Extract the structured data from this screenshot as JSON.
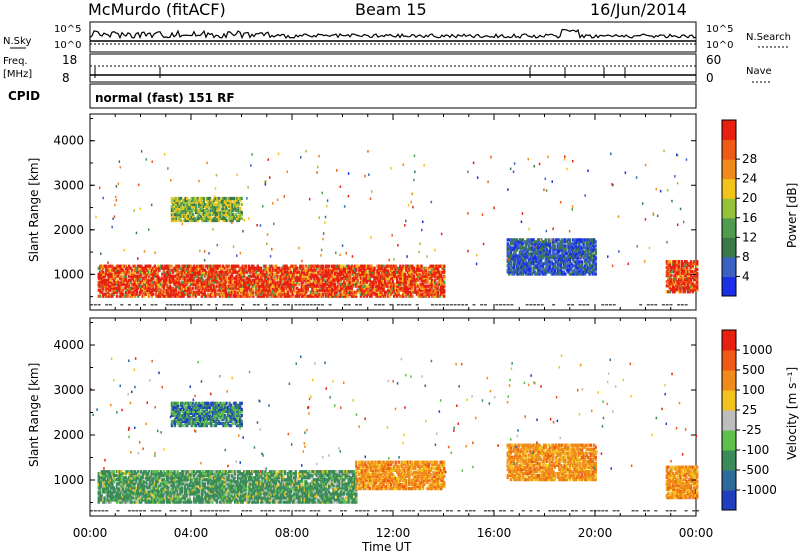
{
  "header": {
    "site": "McMurdo (fitACF)",
    "beam": "Beam 15",
    "date": "16/Jun/2014"
  },
  "top_panels": {
    "nsky_label": "N.Sky",
    "nsky_ticks": [
      "10^5",
      "10^0"
    ],
    "nsearch_label": "N.Search",
    "nsearch_ticks": [
      "10^5",
      "10^0"
    ],
    "freq_label": "Freq.",
    "freq_unit": "[MHz]",
    "freq_ticks": [
      "18",
      "8"
    ],
    "nave_label": "Nave",
    "nave_ticks": [
      "60",
      "0"
    ],
    "cpid_label": "CPID",
    "cpid_value": "normal (fast) 151 RF"
  },
  "chart_data": [
    {
      "type": "heatmap",
      "name": "power",
      "ylabel": "Slant Range [km]",
      "y_ticks": [
        1000,
        2000,
        3000,
        4000
      ],
      "ylim": [
        200,
        4600
      ],
      "x_ticks": [
        "00:00",
        "04:00",
        "08:00",
        "12:00",
        "16:00",
        "20:00",
        "00:00"
      ],
      "xlim_hours": [
        0,
        24
      ],
      "colorbar": {
        "label": "Power [dB]",
        "ticks": [
          "4",
          "8",
          "12",
          "16",
          "20",
          "24",
          "28"
        ],
        "colors": [
          "#1a2fe6",
          "#3b62c2",
          "#3a7a4a",
          "#4f9b50",
          "#96c23a",
          "#f2c31a",
          "#f08a1a",
          "#ef5a16",
          "#e82010"
        ]
      },
      "regions": [
        {
          "t0": 0.3,
          "t1": 14.0,
          "r0": 500,
          "r1": 1200,
          "level": "high"
        },
        {
          "t0": 3.2,
          "t1": 6.0,
          "r0": 2200,
          "r1": 2700,
          "level": "mid"
        },
        {
          "t0": 16.5,
          "t1": 20.0,
          "r0": 1000,
          "r1": 1800,
          "level": "low"
        },
        {
          "t0": 22.8,
          "t1": 24.0,
          "r0": 600,
          "r1": 1300,
          "level": "high"
        }
      ]
    },
    {
      "type": "heatmap",
      "name": "velocity",
      "ylabel": "Slant Range [km]",
      "y_ticks": [
        1000,
        2000,
        3000,
        4000
      ],
      "ylim": [
        200,
        4600
      ],
      "x_ticks": [
        "00:00",
        "04:00",
        "08:00",
        "12:00",
        "16:00",
        "20:00",
        "00:00"
      ],
      "xlim_hours": [
        0,
        24
      ],
      "xlabel": "Time UT",
      "colorbar": {
        "label": "Velocity [m s⁻¹]",
        "ticks": [
          "1000",
          "500",
          "100",
          "25",
          "-25",
          "-100",
          "-500",
          "-1000"
        ],
        "colors": [
          "#1f3fbf",
          "#2c6a9a",
          "#3b8a5a",
          "#5ec04a",
          "#bdbdbd",
          "#f2c320",
          "#f08a1a",
          "#ef5a16",
          "#e82010"
        ]
      },
      "regions": [
        {
          "t0": 0.3,
          "t1": 10.5,
          "r0": 500,
          "r1": 1200,
          "level": "green"
        },
        {
          "t0": 10.5,
          "t1": 14.0,
          "r0": 800,
          "r1": 1400,
          "level": "orange"
        },
        {
          "t0": 3.2,
          "t1": 6.0,
          "r0": 2200,
          "r1": 2700,
          "level": "mixed"
        },
        {
          "t0": 16.5,
          "t1": 20.0,
          "r0": 1000,
          "r1": 1800,
          "level": "orange"
        },
        {
          "t0": 22.8,
          "t1": 24.0,
          "r0": 600,
          "r1": 1300,
          "level": "orange"
        }
      ]
    }
  ]
}
